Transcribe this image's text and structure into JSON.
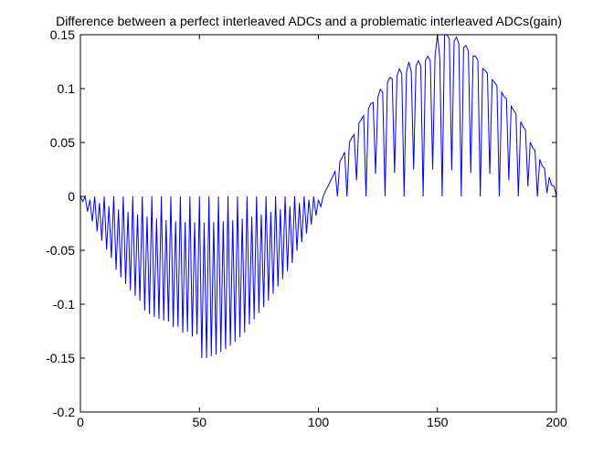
{
  "chart_data": {
    "type": "line",
    "title": "Difference between a perfect interleaved ADCs and a problematic interleaved ADCs(gain)",
    "xlabel": "",
    "ylabel": "",
    "xlim": [
      0,
      200
    ],
    "ylim": [
      -0.2,
      0.15
    ],
    "x_ticks": [
      0,
      50,
      100,
      150,
      200
    ],
    "x_tick_labels": [
      "0",
      "50",
      "100",
      "150",
      "200"
    ],
    "y_ticks": [
      -0.2,
      -0.15,
      -0.1,
      -0.05,
      0,
      0.05,
      0.1,
      0.15
    ],
    "y_tick_labels": [
      "-0.2",
      "-0.15",
      "-0.1",
      "-0.05",
      "0",
      "0.05",
      "0.1",
      "0.15"
    ],
    "grid": false,
    "legend": "none",
    "line_color": "#0000ff",
    "series": [
      {
        "x": [
          0,
          1,
          2,
          3,
          4,
          5,
          6,
          7,
          8,
          9,
          10,
          11,
          12,
          13,
          14,
          15,
          16,
          17,
          18,
          19,
          20,
          21,
          22,
          23,
          24,
          25,
          26,
          27,
          28,
          29,
          30,
          31,
          32,
          33,
          34,
          35,
          36,
          37,
          38,
          39,
          40,
          41,
          42,
          43,
          44,
          45,
          46,
          47,
          48,
          49,
          50,
          51,
          52,
          53,
          54,
          55,
          56,
          57,
          58,
          59,
          60,
          61,
          62,
          63,
          64,
          65,
          66,
          67,
          68,
          69,
          70,
          71,
          72,
          73,
          74,
          75,
          76,
          77,
          78,
          79,
          80,
          81,
          82,
          83,
          84,
          85,
          86,
          87,
          88,
          89,
          90,
          91,
          92,
          93,
          94,
          95,
          96,
          97,
          98,
          99,
          100,
          101,
          102,
          103,
          104,
          105,
          106,
          107,
          108,
          109,
          110,
          111,
          112,
          113,
          114,
          115,
          116,
          117,
          118,
          119,
          120,
          121,
          122,
          123,
          124,
          125,
          126,
          127,
          128,
          129,
          130,
          131,
          132,
          133,
          134,
          135,
          136,
          137,
          138,
          139,
          140,
          141,
          142,
          143,
          144,
          145,
          146,
          147,
          148,
          149,
          150,
          151,
          152,
          153,
          154,
          155,
          156,
          157,
          158,
          159,
          160,
          161,
          162,
          163,
          164,
          165,
          166,
          167,
          168,
          169,
          170,
          171,
          172,
          173,
          174,
          175,
          176,
          177,
          178,
          179,
          180,
          181,
          182,
          183,
          184,
          185,
          186,
          187,
          188,
          189,
          190,
          191,
          192,
          193,
          194,
          195,
          196,
          197,
          198,
          199,
          200
        ],
        "y": [
          0,
          -0.0047,
          0,
          -0.0141,
          -0.0031,
          -0.0233,
          0,
          -0.0324,
          -0.0062,
          -0.0411,
          0,
          -0.0494,
          -0.0091,
          -0.0572,
          0,
          -0.0681,
          -0.0119,
          -0.075,
          0,
          -0.0813,
          -0.0144,
          -0.0871,
          0,
          -0.0923,
          -0.0168,
          -0.0968,
          0,
          -0.1058,
          -0.0188,
          -0.1091,
          0,
          -0.1117,
          -0.0206,
          -0.1138,
          0,
          -0.1152,
          -0.022,
          -0.116,
          0,
          -0.1211,
          -0.0231,
          -0.1209,
          0,
          -0.1266,
          -0.0238,
          -0.1255,
          0,
          -0.13,
          -0.0242,
          -0.1282,
          0,
          -0.15,
          -0.0242,
          -0.15,
          0,
          -0.1482,
          -0.0238,
          -0.1466,
          0,
          -0.1442,
          -0.0231,
          -0.1416,
          0,
          -0.1382,
          -0.022,
          -0.135,
          0,
          -0.1305,
          -0.0206,
          -0.1265,
          0,
          -0.1187,
          -0.0188,
          -0.114,
          0,
          -0.1082,
          -0.0168,
          -0.1027,
          0,
          -0.0966,
          -0.0144,
          -0.0904,
          0,
          -0.0836,
          -0.0119,
          -0.0767,
          0,
          -0.0694,
          -0.0091,
          -0.0619,
          0,
          -0.0504,
          -0.0062,
          -0.0425,
          0,
          -0.0344,
          -0.0031,
          -0.026,
          0,
          -0.0178,
          -0.0031,
          -0.0095,
          0,
          0.0052,
          0.0093,
          0.0141,
          0.0184,
          0.0233,
          0,
          0.0324,
          0.0362,
          0.0411,
          0,
          0.0494,
          0.0545,
          0.0572,
          0.0151,
          0.0681,
          0.0711,
          0.075,
          0,
          0.0813,
          0.0862,
          0.0871,
          0.0209,
          0.0923,
          0.0993,
          0.0968,
          0,
          0.1058,
          0.1103,
          0.1091,
          0.0218,
          0.1117,
          0.1183,
          0.1138,
          0,
          0.1152,
          0.1248,
          0.116,
          0.025,
          0.1211,
          0.1259,
          0.1209,
          0,
          0.1266,
          0.13,
          0.1255,
          0.025,
          0.13,
          0.15,
          0.1282,
          0,
          0.15,
          0.1498,
          0.1466,
          0.0242,
          0.1442,
          0.1478,
          0.1416,
          0,
          0.1382,
          0.14,
          0.135,
          0.0218,
          0.1305,
          0.1299,
          0.1265,
          0,
          0.1187,
          0.117,
          0.114,
          0.0209,
          0.1082,
          0.1059,
          0.1027,
          0,
          0.0966,
          0.0927,
          0.0904,
          0.0151,
          0.0836,
          0.08,
          0.0767,
          0,
          0.0694,
          0.0647,
          0.0619,
          0.0093,
          0.0504,
          0.0451,
          0.0425,
          0,
          0.0344,
          0.0284,
          0.026,
          0.0031,
          0.0178,
          0.0105,
          0.0095,
          0
        ]
      }
    ]
  }
}
